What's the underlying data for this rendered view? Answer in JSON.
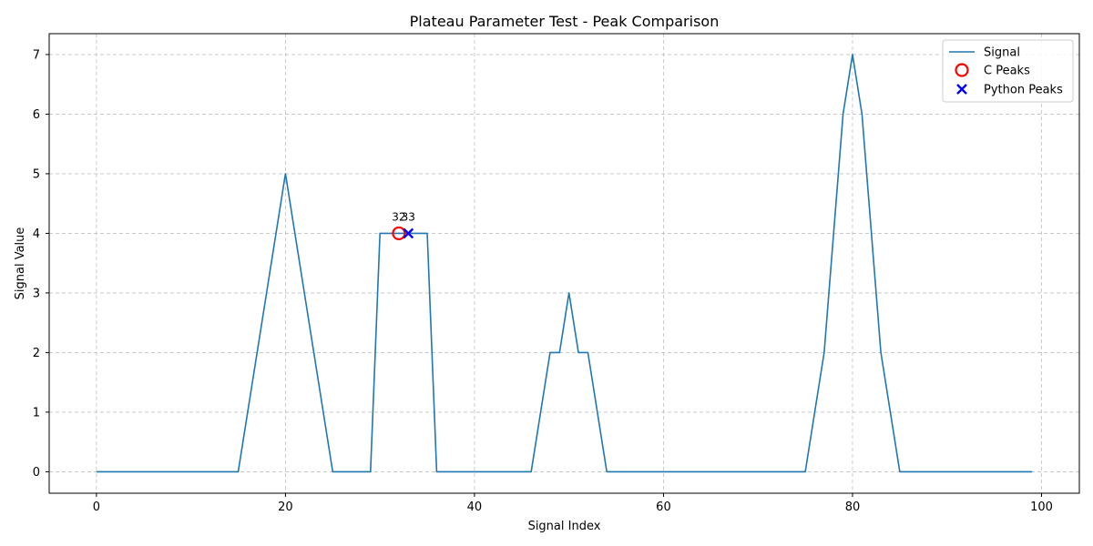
{
  "chart_data": {
    "type": "line",
    "title": "Plateau Parameter Test - Peak Comparison",
    "xlabel": "Signal Index",
    "ylabel": "Signal Value",
    "xlim": [
      -5,
      104
    ],
    "ylim": [
      -0.36,
      7.35
    ],
    "xticks": [
      0,
      20,
      40,
      60,
      80,
      100
    ],
    "yticks": [
      0,
      1,
      2,
      3,
      4,
      5,
      6,
      7
    ],
    "grid": true,
    "legend_position": "top-right",
    "series": [
      {
        "name": "Signal",
        "color": "#1f77b4",
        "x": [
          0,
          1,
          2,
          3,
          4,
          5,
          6,
          7,
          8,
          9,
          10,
          11,
          12,
          13,
          14,
          15,
          16,
          17,
          18,
          19,
          20,
          21,
          22,
          23,
          24,
          25,
          26,
          27,
          28,
          29,
          30,
          31,
          32,
          33,
          34,
          35,
          36,
          37,
          38,
          39,
          40,
          41,
          42,
          43,
          44,
          45,
          46,
          47,
          48,
          49,
          50,
          51,
          52,
          53,
          54,
          55,
          56,
          57,
          58,
          59,
          60,
          61,
          62,
          63,
          64,
          65,
          66,
          67,
          68,
          69,
          70,
          71,
          72,
          73,
          74,
          75,
          76,
          77,
          78,
          79,
          80,
          81,
          82,
          83,
          84,
          85,
          86,
          87,
          88,
          89,
          90,
          91,
          92,
          93,
          94,
          95,
          96,
          97,
          98,
          99
        ],
        "y": [
          0,
          0,
          0,
          0,
          0,
          0,
          0,
          0,
          0,
          0,
          0,
          0,
          0,
          0,
          0,
          0,
          1,
          2,
          3,
          4,
          5,
          4,
          3,
          2,
          1,
          0,
          0,
          0,
          0,
          0,
          4,
          4,
          4,
          4,
          4,
          4,
          0,
          0,
          0,
          0,
          0,
          0,
          0,
          0,
          0,
          0,
          0,
          1,
          2,
          2,
          3,
          2,
          2,
          1,
          0,
          0,
          0,
          0,
          0,
          0,
          0,
          0,
          0,
          0,
          0,
          0,
          0,
          0,
          0,
          0,
          0,
          0,
          0,
          0,
          0,
          0,
          1,
          2,
          4,
          6,
          7,
          6,
          4,
          2,
          1,
          0,
          0,
          0,
          0,
          0,
          0,
          0,
          0,
          0,
          0,
          0,
          0,
          0,
          0,
          0
        ]
      },
      {
        "name": "C Peaks",
        "color": "#ff0000",
        "marker": "circle-open",
        "x": [
          32
        ],
        "y": [
          4
        ]
      },
      {
        "name": "Python Peaks",
        "color": "#0000ff",
        "marker": "x",
        "x": [
          33
        ],
        "y": [
          4
        ]
      }
    ],
    "annotations": [
      {
        "text": "32",
        "x": 32,
        "y": 4
      },
      {
        "text": "33",
        "x": 33,
        "y": 4
      }
    ]
  }
}
